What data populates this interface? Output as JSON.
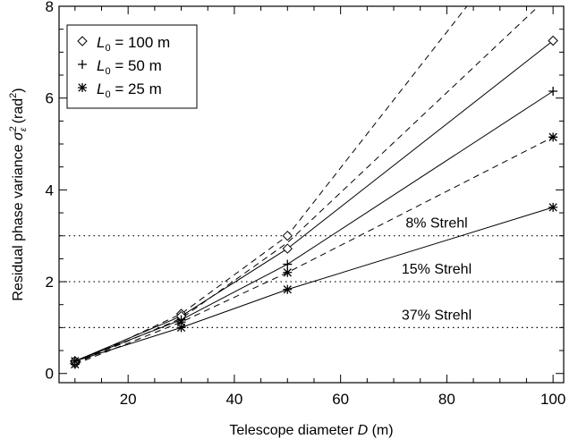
{
  "chart_data": {
    "type": "line",
    "xlabel": {
      "prefix": "Telescope diameter ",
      "var": "D",
      "suffix": " (m)"
    },
    "ylabel": {
      "prefix": "Residual phase variance ",
      "var": "σ",
      "sub": "ε",
      "sup": "2",
      "unit_pre": " (rad",
      "unit_sup": "2",
      "unit_post": ")"
    },
    "xlim": [
      7,
      102
    ],
    "ylim": [
      -0.2,
      8
    ],
    "xticks": [
      20,
      40,
      60,
      80,
      100
    ],
    "yticks": [
      0,
      2,
      4,
      6,
      8
    ],
    "grid": false,
    "legend_position": "top-left",
    "series": [
      {
        "name": "100 m",
        "legend_var": "L",
        "legend_sub": "0",
        "marker": "diamond",
        "x": [
          10,
          30,
          50,
          100
        ],
        "y": [
          0.27,
          1.25,
          2.72,
          7.25
        ]
      },
      {
        "name": "50 m",
        "legend_var": "L",
        "legend_sub": "0",
        "marker": "plus",
        "x": [
          10,
          30,
          50,
          100
        ],
        "y": [
          0.27,
          1.17,
          2.38,
          6.15
        ]
      },
      {
        "name": "25 m",
        "legend_var": "L",
        "legend_sub": "0",
        "marker": "asterisk",
        "x": [
          10,
          30,
          50,
          100
        ],
        "y": [
          0.27,
          1.0,
          1.83,
          3.62
        ]
      }
    ],
    "dashed_series": [
      {
        "marker": "diamond",
        "x": [
          10,
          30,
          50,
          100
        ],
        "y": [
          0.22,
          1.3,
          3.0,
          10.4
        ]
      },
      {
        "marker": "asterisk",
        "x": [
          10,
          30,
          50,
          100
        ],
        "y": [
          0.2,
          1.12,
          2.2,
          5.15
        ]
      },
      {
        "marker": "none",
        "x": [
          10,
          30,
          50,
          100
        ],
        "y": [
          0.22,
          1.2,
          2.85,
          8.3
        ]
      }
    ],
    "reference_lines": [
      {
        "y": 3.0,
        "label": "8% Strehl"
      },
      {
        "y": 2.0,
        "label": "15% Strehl"
      },
      {
        "y": 1.0,
        "label": "37% Strehl"
      }
    ]
  }
}
